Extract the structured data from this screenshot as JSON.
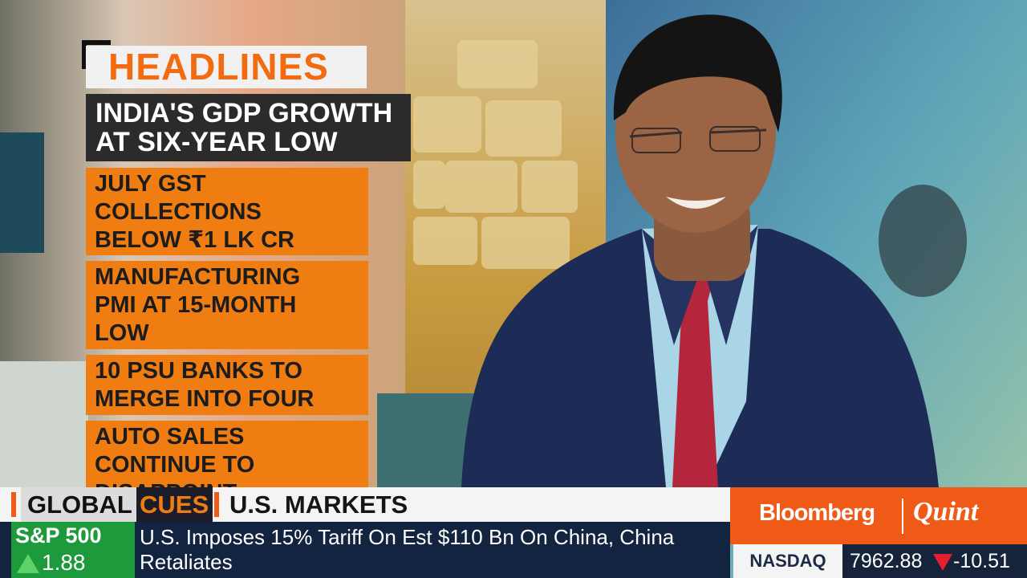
{
  "headlines": {
    "title": "HEADLINES",
    "lead": {
      "lines": [
        "INDIA'S GDP GROWTH",
        "AT SIX-YEAR LOW"
      ]
    },
    "items": [
      {
        "lines": [
          "JULY GST",
          "COLLECTIONS",
          "BELOW ₹1 LK CR"
        ]
      },
      {
        "lines": [
          "MANUFACTURING",
          "PMI AT 15-MONTH",
          "LOW"
        ]
      },
      {
        "lines": [
          "10 PSU BANKS TO",
          "MERGE INTO FOUR"
        ]
      },
      {
        "lines": [
          "AUTO SALES",
          "CONTINUE TO",
          "DISAPPOINT"
        ]
      }
    ]
  },
  "ticker": {
    "section_1": "GLOBAL",
    "section_2": "CUES",
    "topic": "U.S. MARKETS",
    "index_name": "S&P 500",
    "index_change": "1.88",
    "story": "U.S. Imposes 15% Tariff On Est $110 Bn On China, China Retaliates"
  },
  "brand": {
    "name_1": "Bloomberg",
    "name_2": "Quint"
  },
  "quote": {
    "name": "NASDAQ",
    "value": "7962.88",
    "change": "-10.51"
  }
}
